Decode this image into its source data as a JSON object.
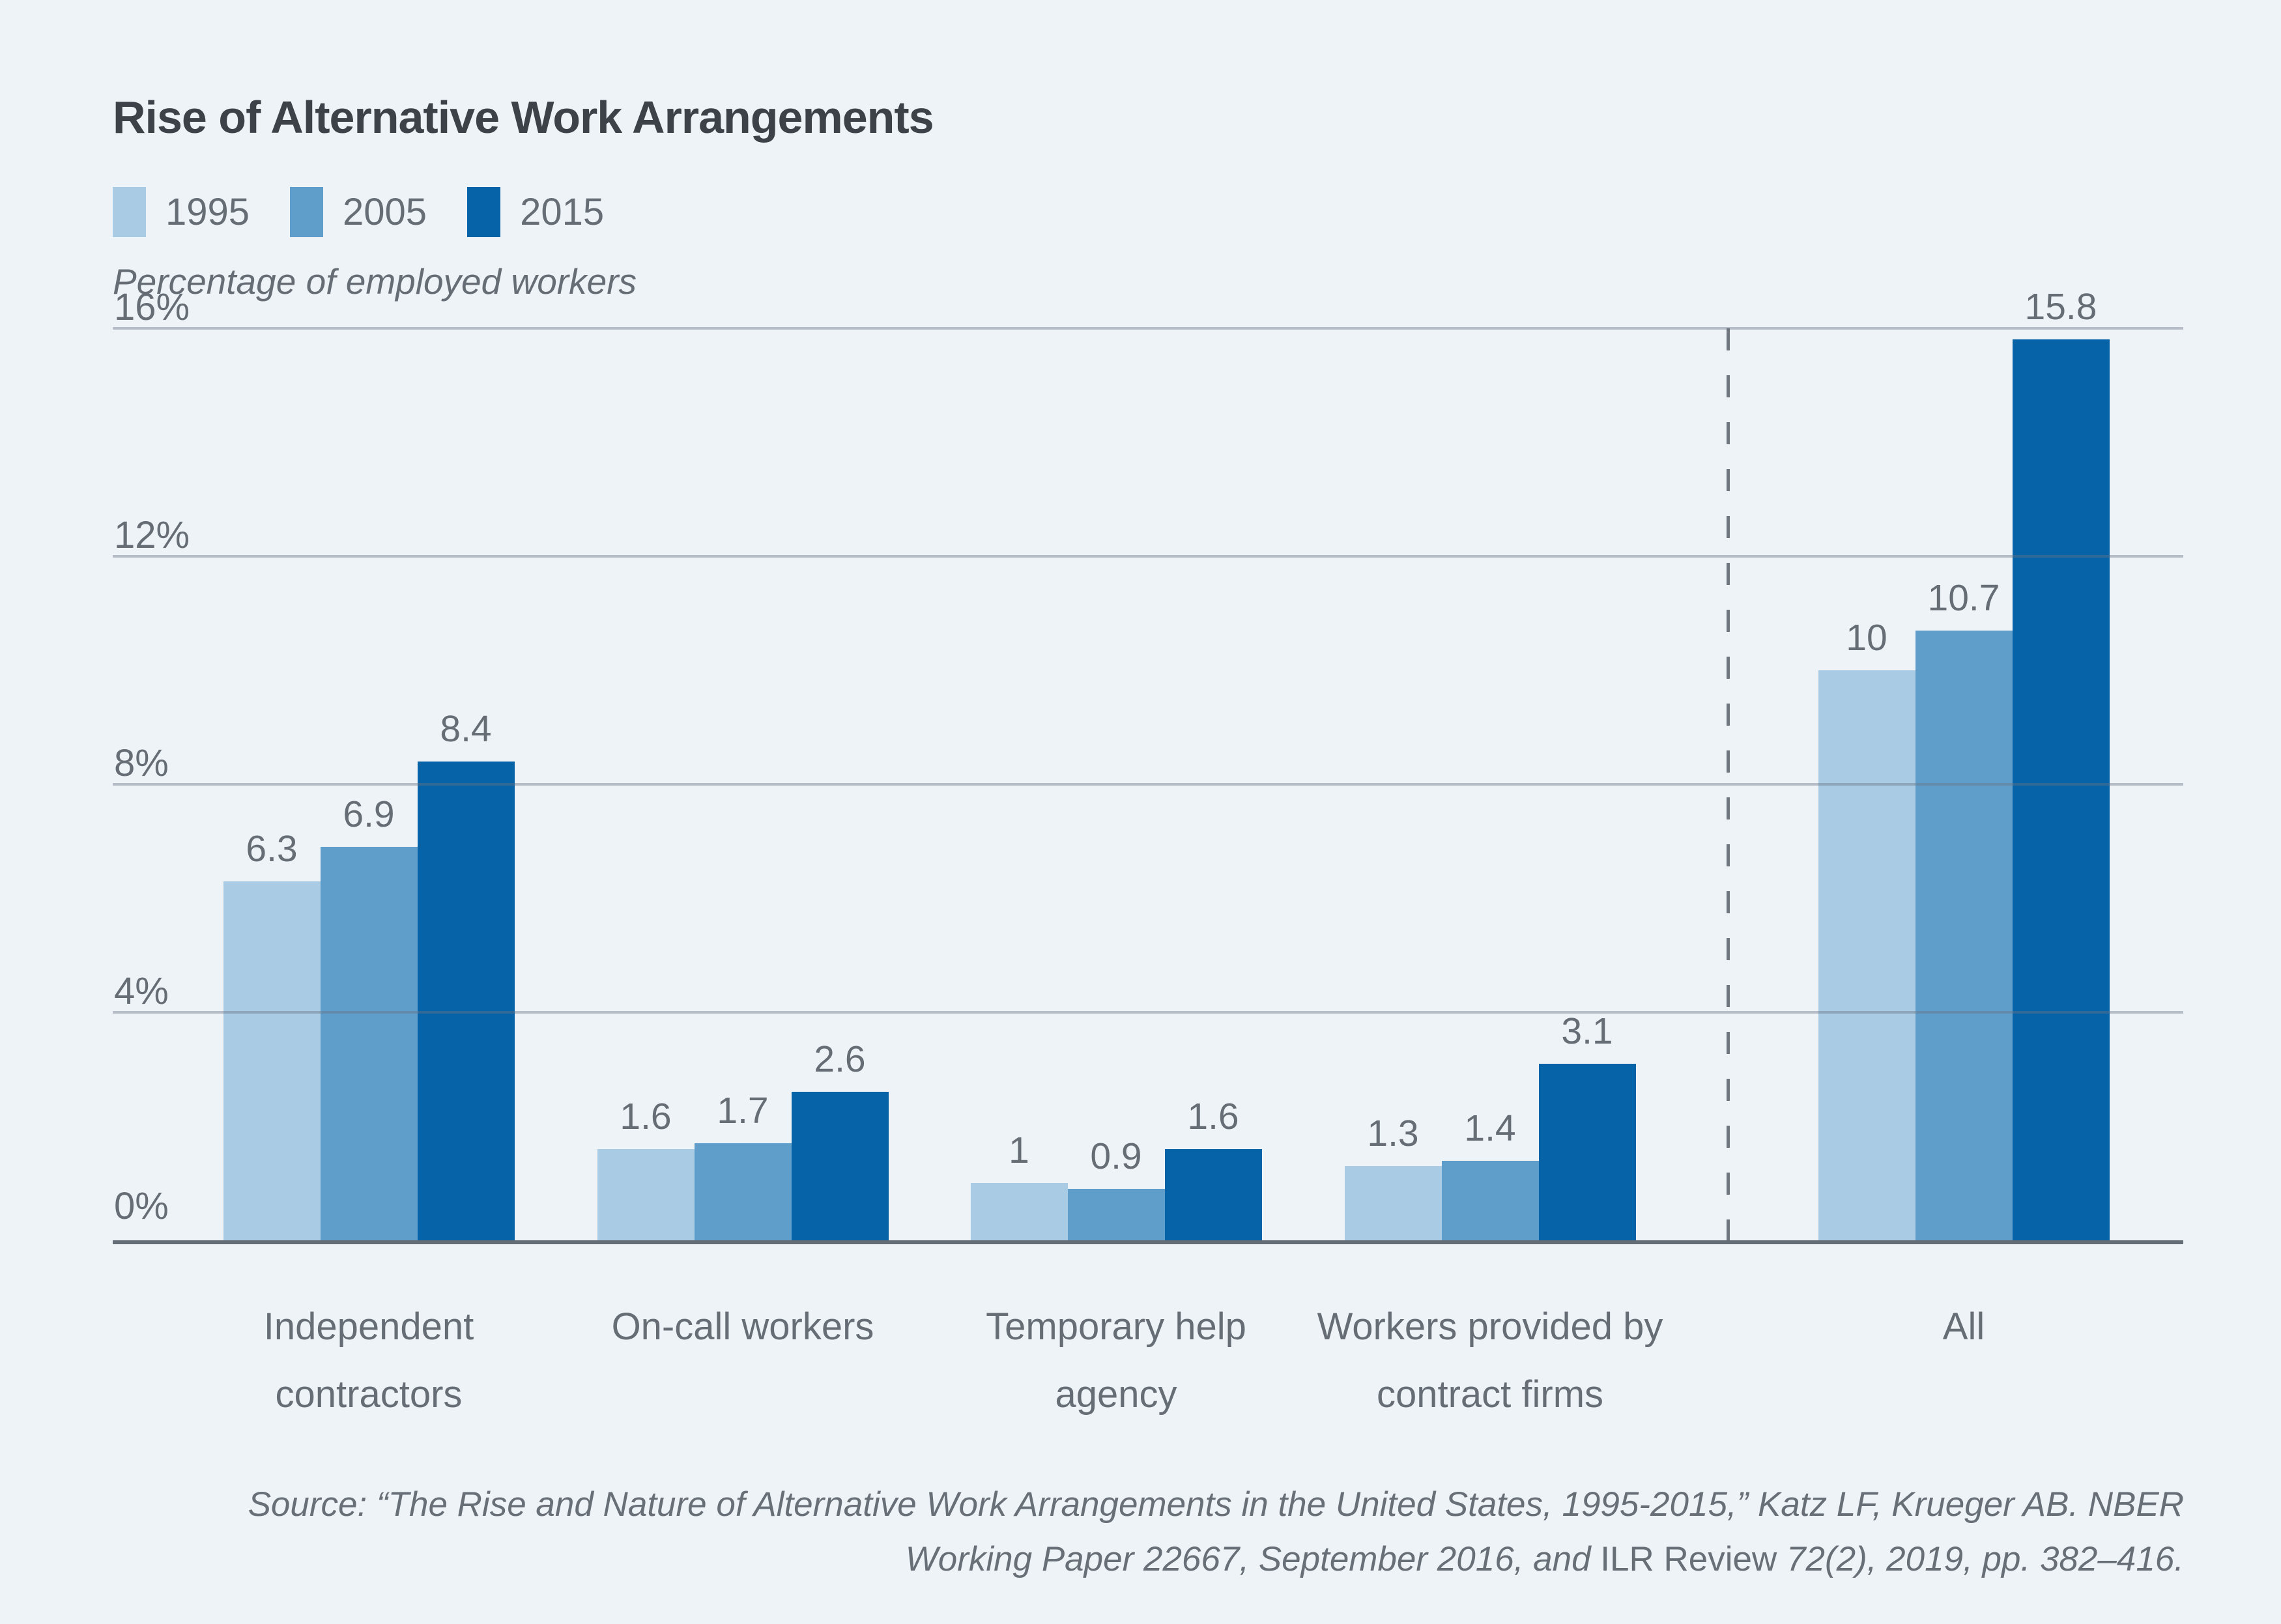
{
  "page": {
    "background": "#eef3f8"
  },
  "title": "Rise of Alternative Work Arrangements",
  "axis_note": "Percentage of employed workers",
  "legend": {
    "items": [
      {
        "label": "1995",
        "color": "#aacbe4"
      },
      {
        "label": "2005",
        "color": "#5f9dca"
      },
      {
        "label": "2015",
        "color": "#0663a8"
      }
    ]
  },
  "colors": {
    "background": "#eef3f8",
    "series_1995": "#aacbe4",
    "series_2005": "#5f9dca",
    "series_2015": "#0663a8",
    "gridline": "#bbc2ca",
    "axis_line": "#646c75",
    "text_gray": "#666d75",
    "title_text": "#3c4247"
  },
  "chart_data": {
    "type": "bar",
    "title": "Rise of Alternative Work Arrangements",
    "ylabel": "Percentage of employed workers",
    "xlabel": "",
    "ylim": [
      0,
      16
    ],
    "grid": true,
    "legend_position": "top-left",
    "yticks": [
      {
        "value": 0,
        "label": "0%"
      },
      {
        "value": 4,
        "label": "4%"
      },
      {
        "value": 8,
        "label": "8%"
      },
      {
        "value": 12,
        "label": "12%"
      },
      {
        "value": 16,
        "label": "16%"
      }
    ],
    "categories": [
      "Independent contractors",
      "On-call workers",
      "Temporary help agency",
      "Workers provided by contract firms",
      "All"
    ],
    "category_lines": [
      [
        "Independent",
        "contractors"
      ],
      [
        "On-call workers"
      ],
      [
        "Temporary help",
        "agency"
      ],
      [
        "Workers provided by",
        "contract firms"
      ],
      [
        "All"
      ]
    ],
    "series": [
      {
        "name": "1995",
        "color": "#aacbe4",
        "values": [
          6.3,
          1.6,
          1,
          1.3,
          10
        ],
        "value_labels": [
          "6.3",
          "1.6",
          "1",
          "1.3",
          "10"
        ]
      },
      {
        "name": "2005",
        "color": "#5f9dca",
        "values": [
          6.9,
          1.7,
          0.9,
          1.4,
          10.7
        ],
        "value_labels": [
          "6.9",
          "1.7",
          "0.9",
          "1.4",
          "10.7"
        ]
      },
      {
        "name": "2015",
        "color": "#0663a8",
        "values": [
          8.4,
          2.6,
          1.6,
          3.1,
          15.8
        ],
        "value_labels": [
          "8.4",
          "2.6",
          "1.6",
          "3.1",
          "15.8"
        ]
      }
    ],
    "divider_before_category": "All"
  },
  "source": {
    "line1": "Source: “The Rise and Nature of Alternative Work Arrangements in the United States, 1995-2015,” Katz LF, Krueger AB. NBER",
    "line2_pre": "Working Paper 22667, September 2016, and ",
    "line2_upright": "ILR Review",
    "line2_post": " 72(2), 2019, pp. 382–416."
  }
}
